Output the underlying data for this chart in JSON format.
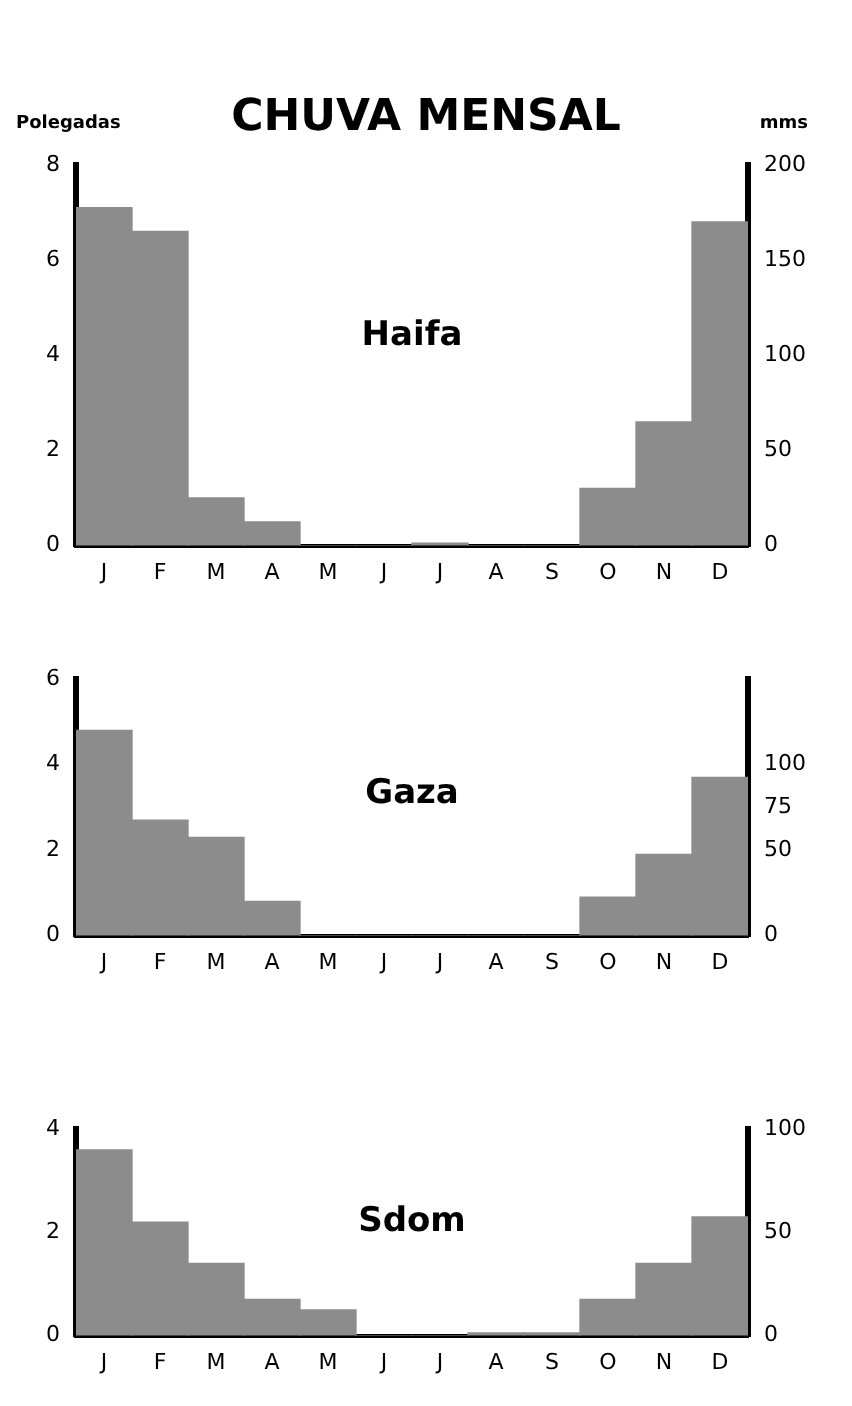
{
  "chart_data": [
    {
      "type": "bar",
      "title": "CHUVA MENSAL",
      "ylabel": "Polegadas",
      "y2label": "mms",
      "annotations": [
        "Haifa"
      ],
      "categories": [
        "J",
        "F",
        "M",
        "A",
        "M",
        "J",
        "J",
        "A",
        "S",
        "O",
        "N",
        "D"
      ],
      "series": [
        {
          "color": "#8c8c8c",
          "values": [
            7.1,
            6.6,
            1.0,
            0.5,
            0,
            0,
            0.05,
            0,
            0,
            1.2,
            2.6,
            6.8
          ]
        }
      ],
      "ylim": [
        0,
        8
      ],
      "yticks": [
        0,
        2,
        4,
        6,
        8
      ],
      "y2lim": [
        0,
        200
      ],
      "y2ticks": [
        0,
        50,
        100,
        150,
        200
      ],
      "grid": false,
      "legend": false
    },
    {
      "type": "bar",
      "annotations": [
        "Gaza"
      ],
      "categories": [
        "J",
        "F",
        "M",
        "A",
        "M",
        "J",
        "J",
        "A",
        "S",
        "O",
        "N",
        "D"
      ],
      "series": [
        {
          "color": "#8c8c8c",
          "values": [
            4.8,
            2.7,
            2.3,
            0.8,
            0,
            0,
            0,
            0,
            0,
            0.9,
            1.9,
            3.7
          ]
        }
      ],
      "ylim": [
        0,
        6
      ],
      "yticks": [
        0,
        2,
        4,
        6
      ],
      "y2lim": [
        0,
        150
      ],
      "y2ticks": [
        0,
        50,
        75,
        100
      ],
      "grid": false,
      "legend": false
    },
    {
      "type": "bar",
      "annotations": [
        "Sdom"
      ],
      "categories": [
        "J",
        "F",
        "M",
        "A",
        "M",
        "J",
        "J",
        "A",
        "S",
        "O",
        "N",
        "D"
      ],
      "series": [
        {
          "color": "#8c8c8c",
          "values": [
            3.6,
            2.2,
            1.4,
            0.7,
            0.5,
            0,
            0,
            0.05,
            0.05,
            0.7,
            1.4,
            2.3
          ]
        }
      ],
      "ylim": [
        0,
        4
      ],
      "yticks": [
        0,
        2,
        4
      ],
      "y2lim": [
        0,
        100
      ],
      "y2ticks": [
        0,
        50,
        100
      ],
      "grid": false,
      "legend": false
    }
  ]
}
